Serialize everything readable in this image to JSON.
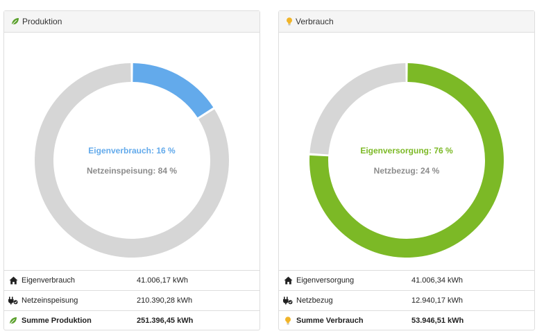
{
  "colors": {
    "blue": "#63aaeb",
    "green": "#7cb926",
    "gray": "#d6d6d6",
    "gray_text": "#8c8c8c"
  },
  "production": {
    "title": "Produktion",
    "icon": "leaf-icon",
    "chart": {
      "primary_label": "Eigenverbrauch: 16 %",
      "secondary_label": "Netzeinspeisung: 84 %",
      "primary_fraction": 0.16
    },
    "rows": [
      {
        "icon": "home-icon",
        "label": "Eigenverbrauch",
        "value": "41.006,17 kWh"
      },
      {
        "icon": "plug-icon",
        "label": "Netzeinspeisung",
        "value": "210.390,28 kWh"
      },
      {
        "icon": "leaf-icon",
        "label": "Summe Produktion",
        "value": "251.396,45 kWh"
      }
    ]
  },
  "consumption": {
    "title": "Verbrauch",
    "icon": "lightbulb-icon",
    "chart": {
      "primary_label": "Eigenversorgung: 76 %",
      "secondary_label": "Netzbezug: 24 %",
      "primary_fraction": 0.76
    },
    "rows": [
      {
        "icon": "home-icon",
        "label": "Eigenversorgung",
        "value": "41.006,34 kWh"
      },
      {
        "icon": "plug-icon",
        "label": "Netzbezug",
        "value": "12.940,17 kWh"
      },
      {
        "icon": "lightbulb-icon",
        "label": "Summe Verbrauch",
        "value": "53.946,51 kWh"
      }
    ]
  }
}
